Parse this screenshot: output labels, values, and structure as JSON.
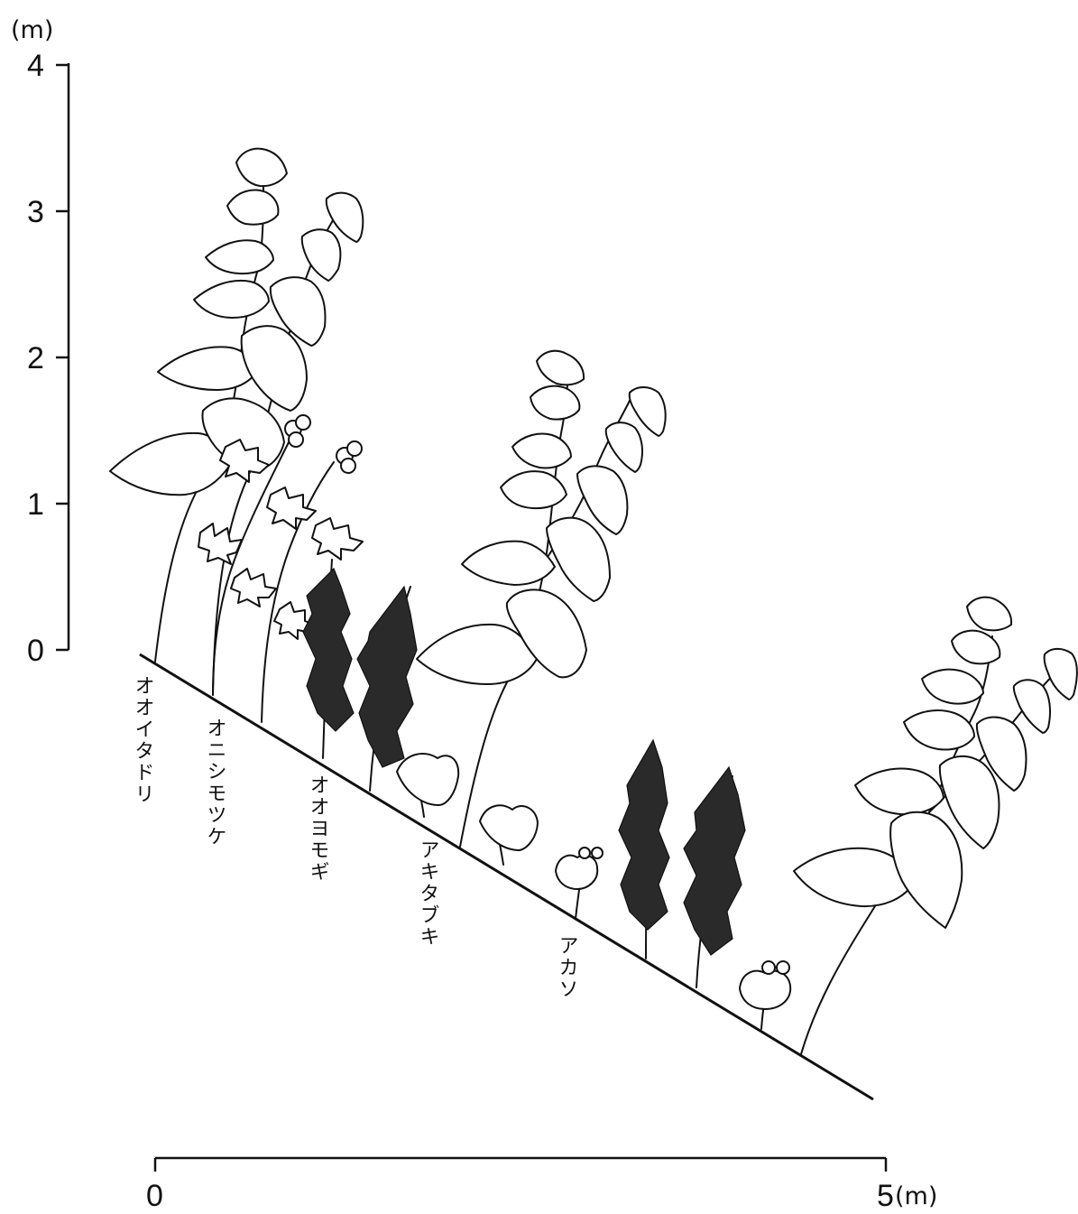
{
  "vertical_axis": {
    "unit": "(m)",
    "ticks": [
      "0",
      "1",
      "2",
      "3",
      "4"
    ]
  },
  "horizontal_scale": {
    "start": "0",
    "end": "5",
    "unit": "(m)"
  },
  "species": [
    {
      "name": "オオイタドリ"
    },
    {
      "name": "オニシモツケ"
    },
    {
      "name": "オオヨモギ"
    },
    {
      "name": "アキタブキ"
    },
    {
      "name": "アカソ"
    }
  ]
}
